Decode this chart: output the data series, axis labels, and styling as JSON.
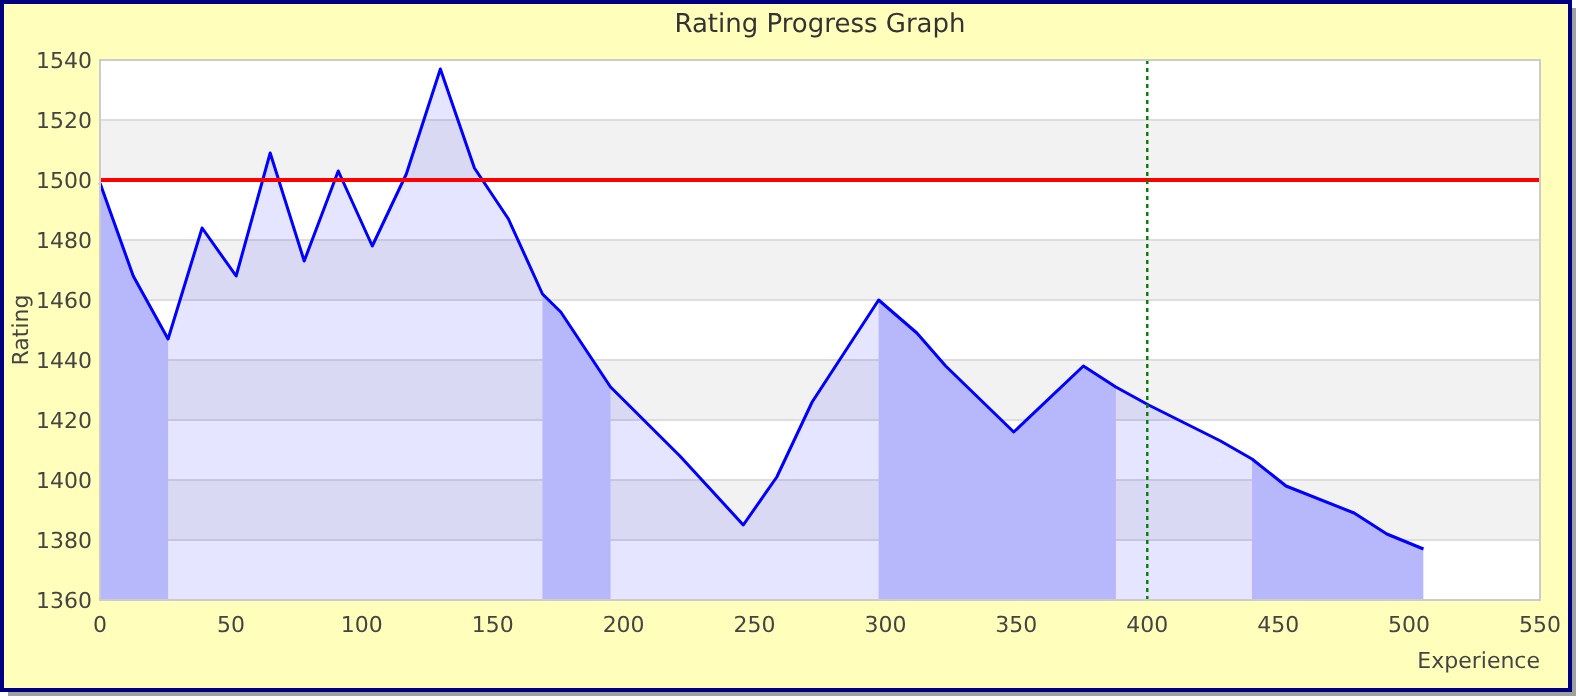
{
  "chart_data": {
    "type": "area",
    "title": "Rating Progress Graph",
    "xlabel": "Experience",
    "ylabel": "Rating",
    "x": [
      0,
      12.7,
      26,
      39,
      52,
      65,
      78,
      91,
      104,
      117,
      130,
      143,
      156,
      169,
      176,
      195,
      221.5,
      245.7,
      258.5,
      272,
      297.4,
      312,
      323,
      349,
      375.6,
      388,
      400.5,
      428,
      440,
      453,
      479,
      491.5,
      505.5
    ],
    "series": [
      {
        "color": "#0000ff",
        "values": [
          1499,
          1468,
          1447,
          1484,
          1468,
          1509,
          1473,
          1503,
          1478,
          1502,
          1537,
          1504,
          1487,
          1462,
          1456,
          1431,
          1408,
          1385,
          1401,
          1426,
          1460,
          1449,
          1438,
          1416,
          1438,
          1431,
          1425,
          1413,
          1407,
          1398,
          1389,
          1382,
          1377
        ]
      }
    ],
    "xlim": [
      0,
      550
    ],
    "xticks": [
      0,
      50,
      100,
      150,
      200,
      250,
      300,
      350,
      400,
      450,
      500,
      550
    ],
    "ylim": [
      1360,
      1540
    ],
    "yticks": [
      1360,
      1380,
      1400,
      1420,
      1440,
      1460,
      1480,
      1500,
      1520,
      1540
    ],
    "grid": "y",
    "ref_lines": [
      {
        "axis": "y",
        "value": 1500,
        "color": "#ff0000",
        "line_style": "solid"
      },
      {
        "axis": "x",
        "value": 400,
        "color": "#008000",
        "line_style": "dotted"
      }
    ],
    "bands": [
      {
        "axis": "x",
        "from": 0,
        "to": 26,
        "color": "#ccccfc"
      },
      {
        "axis": "x",
        "from": 169,
        "to": 195,
        "color": "#ccccfc"
      },
      {
        "axis": "x",
        "from": 297.4,
        "to": 388,
        "color": "#ccccfc"
      },
      {
        "axis": "x",
        "from": 440,
        "to": 505.5,
        "color": "#ccccfc"
      }
    ]
  }
}
